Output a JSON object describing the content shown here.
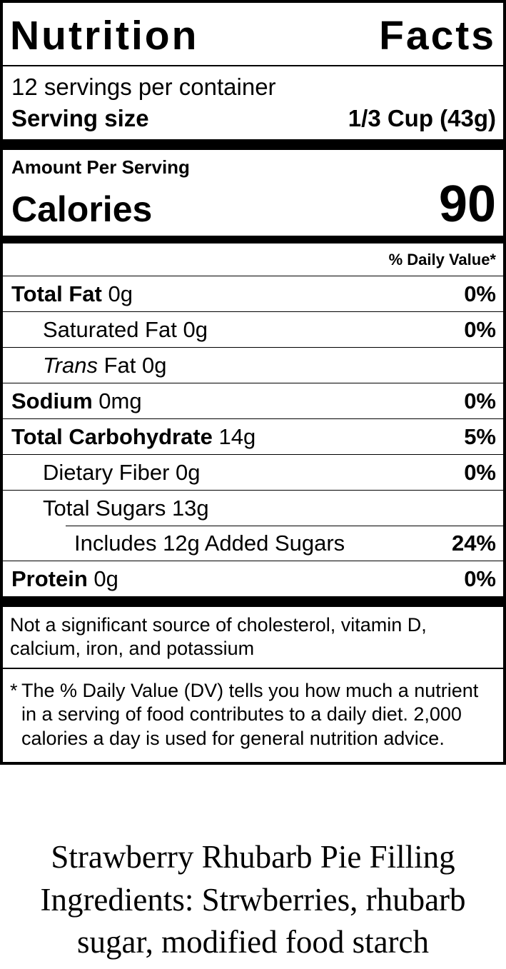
{
  "label": {
    "title": "Nutrition Facts",
    "servings_per_container": "12 servings per container",
    "serving_size_label": "Serving size",
    "serving_size_value": "1/3 Cup (43g)",
    "amount_per_serving": "Amount Per Serving",
    "calories_label": "Calories",
    "calories_value": "90",
    "daily_value_header": "% Daily Value*",
    "rows": [
      {
        "name": "Total Fat",
        "amount": "0g",
        "dv": "0%",
        "indent": 0,
        "bold_name": true
      },
      {
        "name": "Saturated Fat",
        "amount": "0g",
        "dv": "0%",
        "indent": 1,
        "bold_name": false
      },
      {
        "italic": "Trans",
        "name": "Fat",
        "amount": "0g",
        "dv": "",
        "indent": 1,
        "bold_name": false
      },
      {
        "name": "Sodium",
        "amount": "0mg",
        "dv": "0%",
        "indent": 0,
        "bold_name": true
      },
      {
        "name": "Total Carbohydrate",
        "amount": "14g",
        "dv": "5%",
        "indent": 0,
        "bold_name": true
      },
      {
        "name": "Dietary Fiber",
        "amount": "0g",
        "dv": "0%",
        "indent": 1,
        "bold_name": false
      },
      {
        "name": "Total Sugars",
        "amount": "13g",
        "dv": "",
        "indent": 1,
        "bold_name": false
      },
      {
        "name": "Includes 12g Added Sugars",
        "amount": "",
        "dv": "24%",
        "indent": 2,
        "bold_name": false,
        "divider": "partial"
      },
      {
        "name": "Protein",
        "amount": "0g",
        "dv": "0%",
        "indent": 0,
        "bold_name": true
      }
    ],
    "not_significant": "Not a significant source of cholesterol, vitamin D, calcium, iron, and potassium",
    "footnote_star": "*",
    "footnote": "The % Daily Value (DV) tells you how much a nutrient in a serving of food contributes to a daily diet. 2,000 calories a day is used for general nutrition advice."
  },
  "product": {
    "line1": "Strawberry Rhubarb Pie Filling",
    "line2": "Ingredients: Strwberries, rhubarb",
    "line3": "sugar, modified food starch"
  }
}
